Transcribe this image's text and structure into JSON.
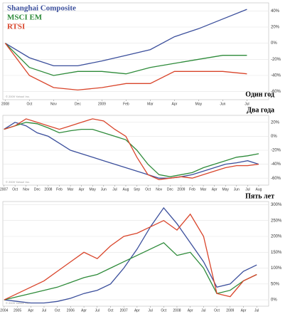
{
  "chart_data": [
    {
      "type": "line",
      "title": "Один год",
      "source": "© 2009 Yahoo! Inc.",
      "legend": "top-left",
      "grid": true,
      "categories": [
        "2008",
        "Oct",
        "Nov",
        "Dec",
        "2009",
        "Feb",
        "Mar",
        "Apr",
        "May",
        "Jun",
        "Jul"
      ],
      "ylim": [
        -70,
        50
      ],
      "yticks": [
        {
          "value": 40,
          "label": "40%"
        },
        {
          "value": 20,
          "label": "20%"
        },
        {
          "value": 0,
          "label": "0%"
        },
        {
          "value": -20,
          "label": "-20%"
        },
        {
          "value": -40,
          "label": "-40%"
        },
        {
          "value": -60,
          "label": "-60%"
        }
      ],
      "series": [
        {
          "name": "Shanghai Composite",
          "color": "#3b4f9c",
          "values": [
            0,
            -18,
            -28,
            -28,
            -22,
            -15,
            -8,
            8,
            18,
            30,
            42
          ]
        },
        {
          "name": "MSCI EM",
          "color": "#2e8b3a",
          "values": [
            0,
            -30,
            -40,
            -35,
            -35,
            -38,
            -30,
            -25,
            -20,
            -15,
            -15
          ]
        },
        {
          "name": "RTSI",
          "color": "#d9452b",
          "values": [
            0,
            -40,
            -55,
            -58,
            -55,
            -50,
            -50,
            -35,
            -35,
            -35,
            -38
          ]
        }
      ]
    },
    {
      "type": "line",
      "title": "Два года",
      "source": "© 2009 Yahoo! Inc.",
      "grid": true,
      "categories": [
        "2007",
        "Oct",
        "Nov",
        "Dec",
        "2008",
        "Feb",
        "Mar",
        "Apr",
        "May",
        "Jun",
        "Jul",
        "Aug",
        "Sep",
        "Oct",
        "Nov",
        "Dec",
        "2009",
        "Feb",
        "Mar",
        "Apr",
        "May",
        "Jun",
        "Jul",
        "Aug"
      ],
      "ylim": [
        -70,
        30
      ],
      "yticks": [
        {
          "value": 20,
          "label": "20%"
        },
        {
          "value": 0,
          "label": "0%"
        },
        {
          "value": -20,
          "label": "-20%"
        },
        {
          "value": -40,
          "label": "-40%"
        },
        {
          "value": -60,
          "label": "-60%"
        }
      ],
      "series": [
        {
          "color": "#3b4f9c",
          "values": [
            10,
            20,
            15,
            5,
            0,
            -10,
            -20,
            -25,
            -30,
            -35,
            -40,
            -45,
            -50,
            -55,
            -60,
            -60,
            -58,
            -55,
            -50,
            -45,
            -40,
            -38,
            -35,
            -40
          ]
        },
        {
          "color": "#2e8b3a",
          "values": [
            10,
            15,
            20,
            18,
            12,
            5,
            8,
            10,
            10,
            5,
            0,
            -5,
            -20,
            -40,
            -55,
            -58,
            -55,
            -52,
            -45,
            -40,
            -35,
            -30,
            -28,
            -25
          ]
        },
        {
          "color": "#d9452b",
          "values": [
            10,
            15,
            25,
            20,
            15,
            10,
            15,
            20,
            25,
            22,
            10,
            0,
            -30,
            -55,
            -62,
            -60,
            -58,
            -60,
            -55,
            -50,
            -45,
            -42,
            -42,
            -40
          ]
        }
      ]
    },
    {
      "type": "line",
      "title": "Пять лет",
      "source": "© 2009 Yahoo! Inc.",
      "grid": true,
      "categories": [
        "2004",
        "2005",
        "Apr",
        "Jul",
        "Oct",
        "2006",
        "Apr",
        "Jul",
        "Oct",
        "2007",
        "Apr",
        "Jul",
        "Oct",
        "2008",
        "Apr",
        "Jul",
        "Oct",
        "2009",
        "Apr",
        "Jul"
      ],
      "ylim": [
        -20,
        310
      ],
      "yticks": [
        {
          "value": 300,
          "label": "300%"
        },
        {
          "value": 250,
          "label": "250%"
        },
        {
          "value": 200,
          "label": "200%"
        },
        {
          "value": 150,
          "label": "150%"
        },
        {
          "value": 100,
          "label": "100%"
        },
        {
          "value": 50,
          "label": "50%"
        },
        {
          "value": 0,
          "label": "0%"
        }
      ],
      "series": [
        {
          "color": "#3b4f9c",
          "values": [
            0,
            -5,
            -10,
            -10,
            -5,
            5,
            20,
            30,
            50,
            100,
            160,
            230,
            290,
            240,
            180,
            120,
            40,
            50,
            90,
            110
          ]
        },
        {
          "color": "#2e8b3a",
          "values": [
            0,
            10,
            20,
            30,
            40,
            55,
            70,
            80,
            100,
            120,
            140,
            160,
            180,
            140,
            150,
            100,
            20,
            30,
            60,
            80
          ]
        },
        {
          "color": "#d9452b",
          "values": [
            0,
            20,
            40,
            60,
            90,
            120,
            150,
            130,
            170,
            200,
            210,
            230,
            250,
            220,
            270,
            200,
            20,
            10,
            60,
            80
          ]
        }
      ]
    }
  ]
}
